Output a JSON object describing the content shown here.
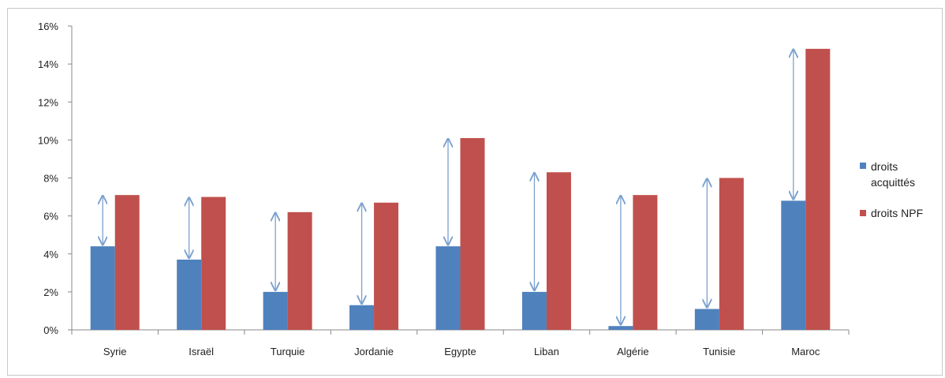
{
  "chart_data": {
    "type": "bar",
    "title": "",
    "xlabel": "",
    "ylabel": "",
    "categories": [
      "Syrie",
      "Israël",
      "Turquie",
      "Jordanie",
      "Egypte",
      "Liban",
      "Algérie",
      "Tunisie",
      "Maroc"
    ],
    "series": [
      {
        "name": "droits acquittés",
        "color": "#4f81bd",
        "values": [
          4.4,
          3.7,
          2.0,
          1.3,
          4.4,
          2.0,
          0.2,
          1.1,
          6.8
        ]
      },
      {
        "name": "droits NPF",
        "color": "#c0504d",
        "values": [
          7.1,
          7.0,
          6.2,
          6.7,
          10.1,
          8.3,
          7.1,
          8.0,
          14.8
        ]
      }
    ],
    "ylim": [
      0,
      16
    ],
    "yticks": [
      "0%",
      "2%",
      "4%",
      "6%",
      "8%",
      "10%",
      "12%",
      "14%",
      "16%"
    ],
    "grid": false,
    "legend_position": "right",
    "annotations": "double-headed arrows between the two bars of each category",
    "arrow_color": "#7ba1cf"
  }
}
